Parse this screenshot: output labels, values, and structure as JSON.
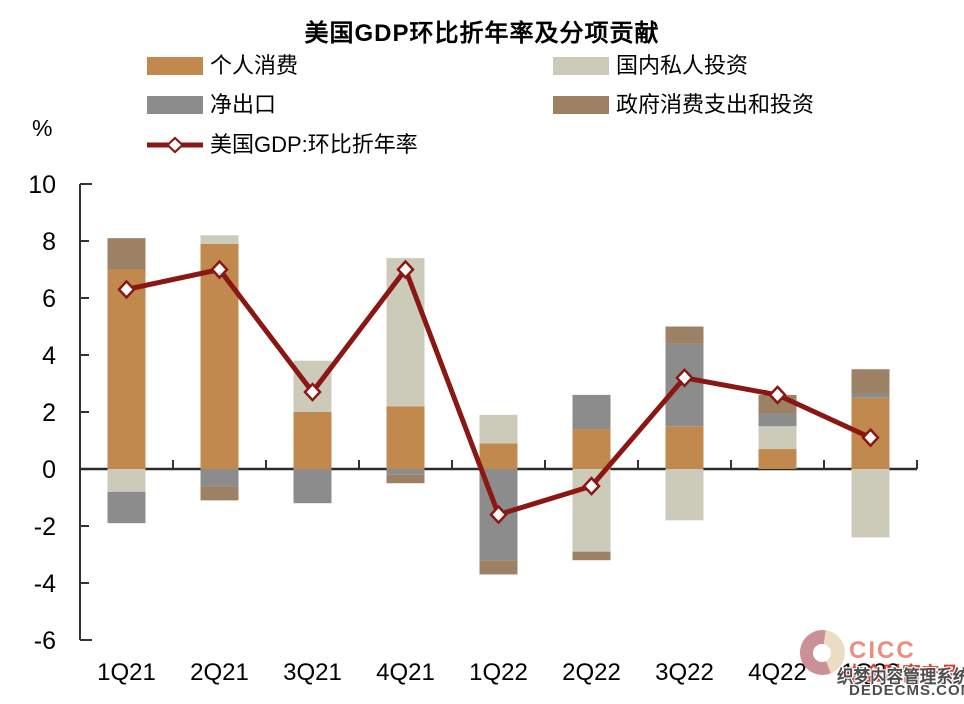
{
  "chart_data": {
    "type": "combo-stacked-bar-line",
    "title": "美国GDP环比折年率及分项贡献",
    "y_unit_label": "%",
    "categories": [
      "1Q21",
      "2Q21",
      "3Q21",
      "4Q21",
      "1Q22",
      "2Q22",
      "3Q22",
      "4Q22",
      "1Q23"
    ],
    "bar_series": [
      {
        "name": "个人消费",
        "color": "#c1894d",
        "values": [
          7.0,
          7.9,
          2.0,
          2.2,
          0.9,
          1.4,
          1.5,
          0.7,
          2.5
        ]
      },
      {
        "name": "国内私人投资",
        "color": "#cccab8",
        "values": [
          -0.8,
          0.3,
          1.8,
          5.2,
          1.0,
          -2.9,
          -1.8,
          0.8,
          -2.4
        ]
      },
      {
        "name": "净出口",
        "color": "#8c8c8c",
        "values": [
          -1.1,
          -0.6,
          -1.2,
          -0.2,
          -3.2,
          1.2,
          2.9,
          0.45,
          0.15
        ]
      },
      {
        "name": "政府消费支出和投资",
        "color": "#9d8165",
        "values": [
          1.1,
          -0.5,
          0.0,
          -0.3,
          -0.5,
          -0.3,
          0.6,
          0.65,
          0.85
        ]
      }
    ],
    "line_series": {
      "name": "美国GDP:环比折年率",
      "color": "#8a1713",
      "marker": "open-diamond",
      "marker_fill": "#ffffff",
      "values": [
        6.3,
        7.0,
        2.7,
        7.0,
        -1.6,
        -0.6,
        3.2,
        2.6,
        1.1
      ]
    },
    "y_axis": {
      "min": -6,
      "max": 10,
      "tick_step": 2,
      "ticks": [
        10,
        8,
        6,
        4,
        2,
        0,
        -2,
        -4,
        -6
      ]
    },
    "stacking": "stacked, negatives below zero line",
    "grid": false,
    "legend_position": "top-left, two columns, line series on own row",
    "axis_color": "#333333"
  },
  "watermark": {
    "cicc_text": "CICC",
    "red_text": "中金财富产品",
    "dede_line1": "织梦内容管理系统",
    "dede_line2": "DEDECMS.COM",
    "logo_color_light": "#ebdcc3",
    "logo_color_dark": "#ca9197",
    "cicc_color": "#ec8e7c",
    "red_color": "#e23b30"
  }
}
